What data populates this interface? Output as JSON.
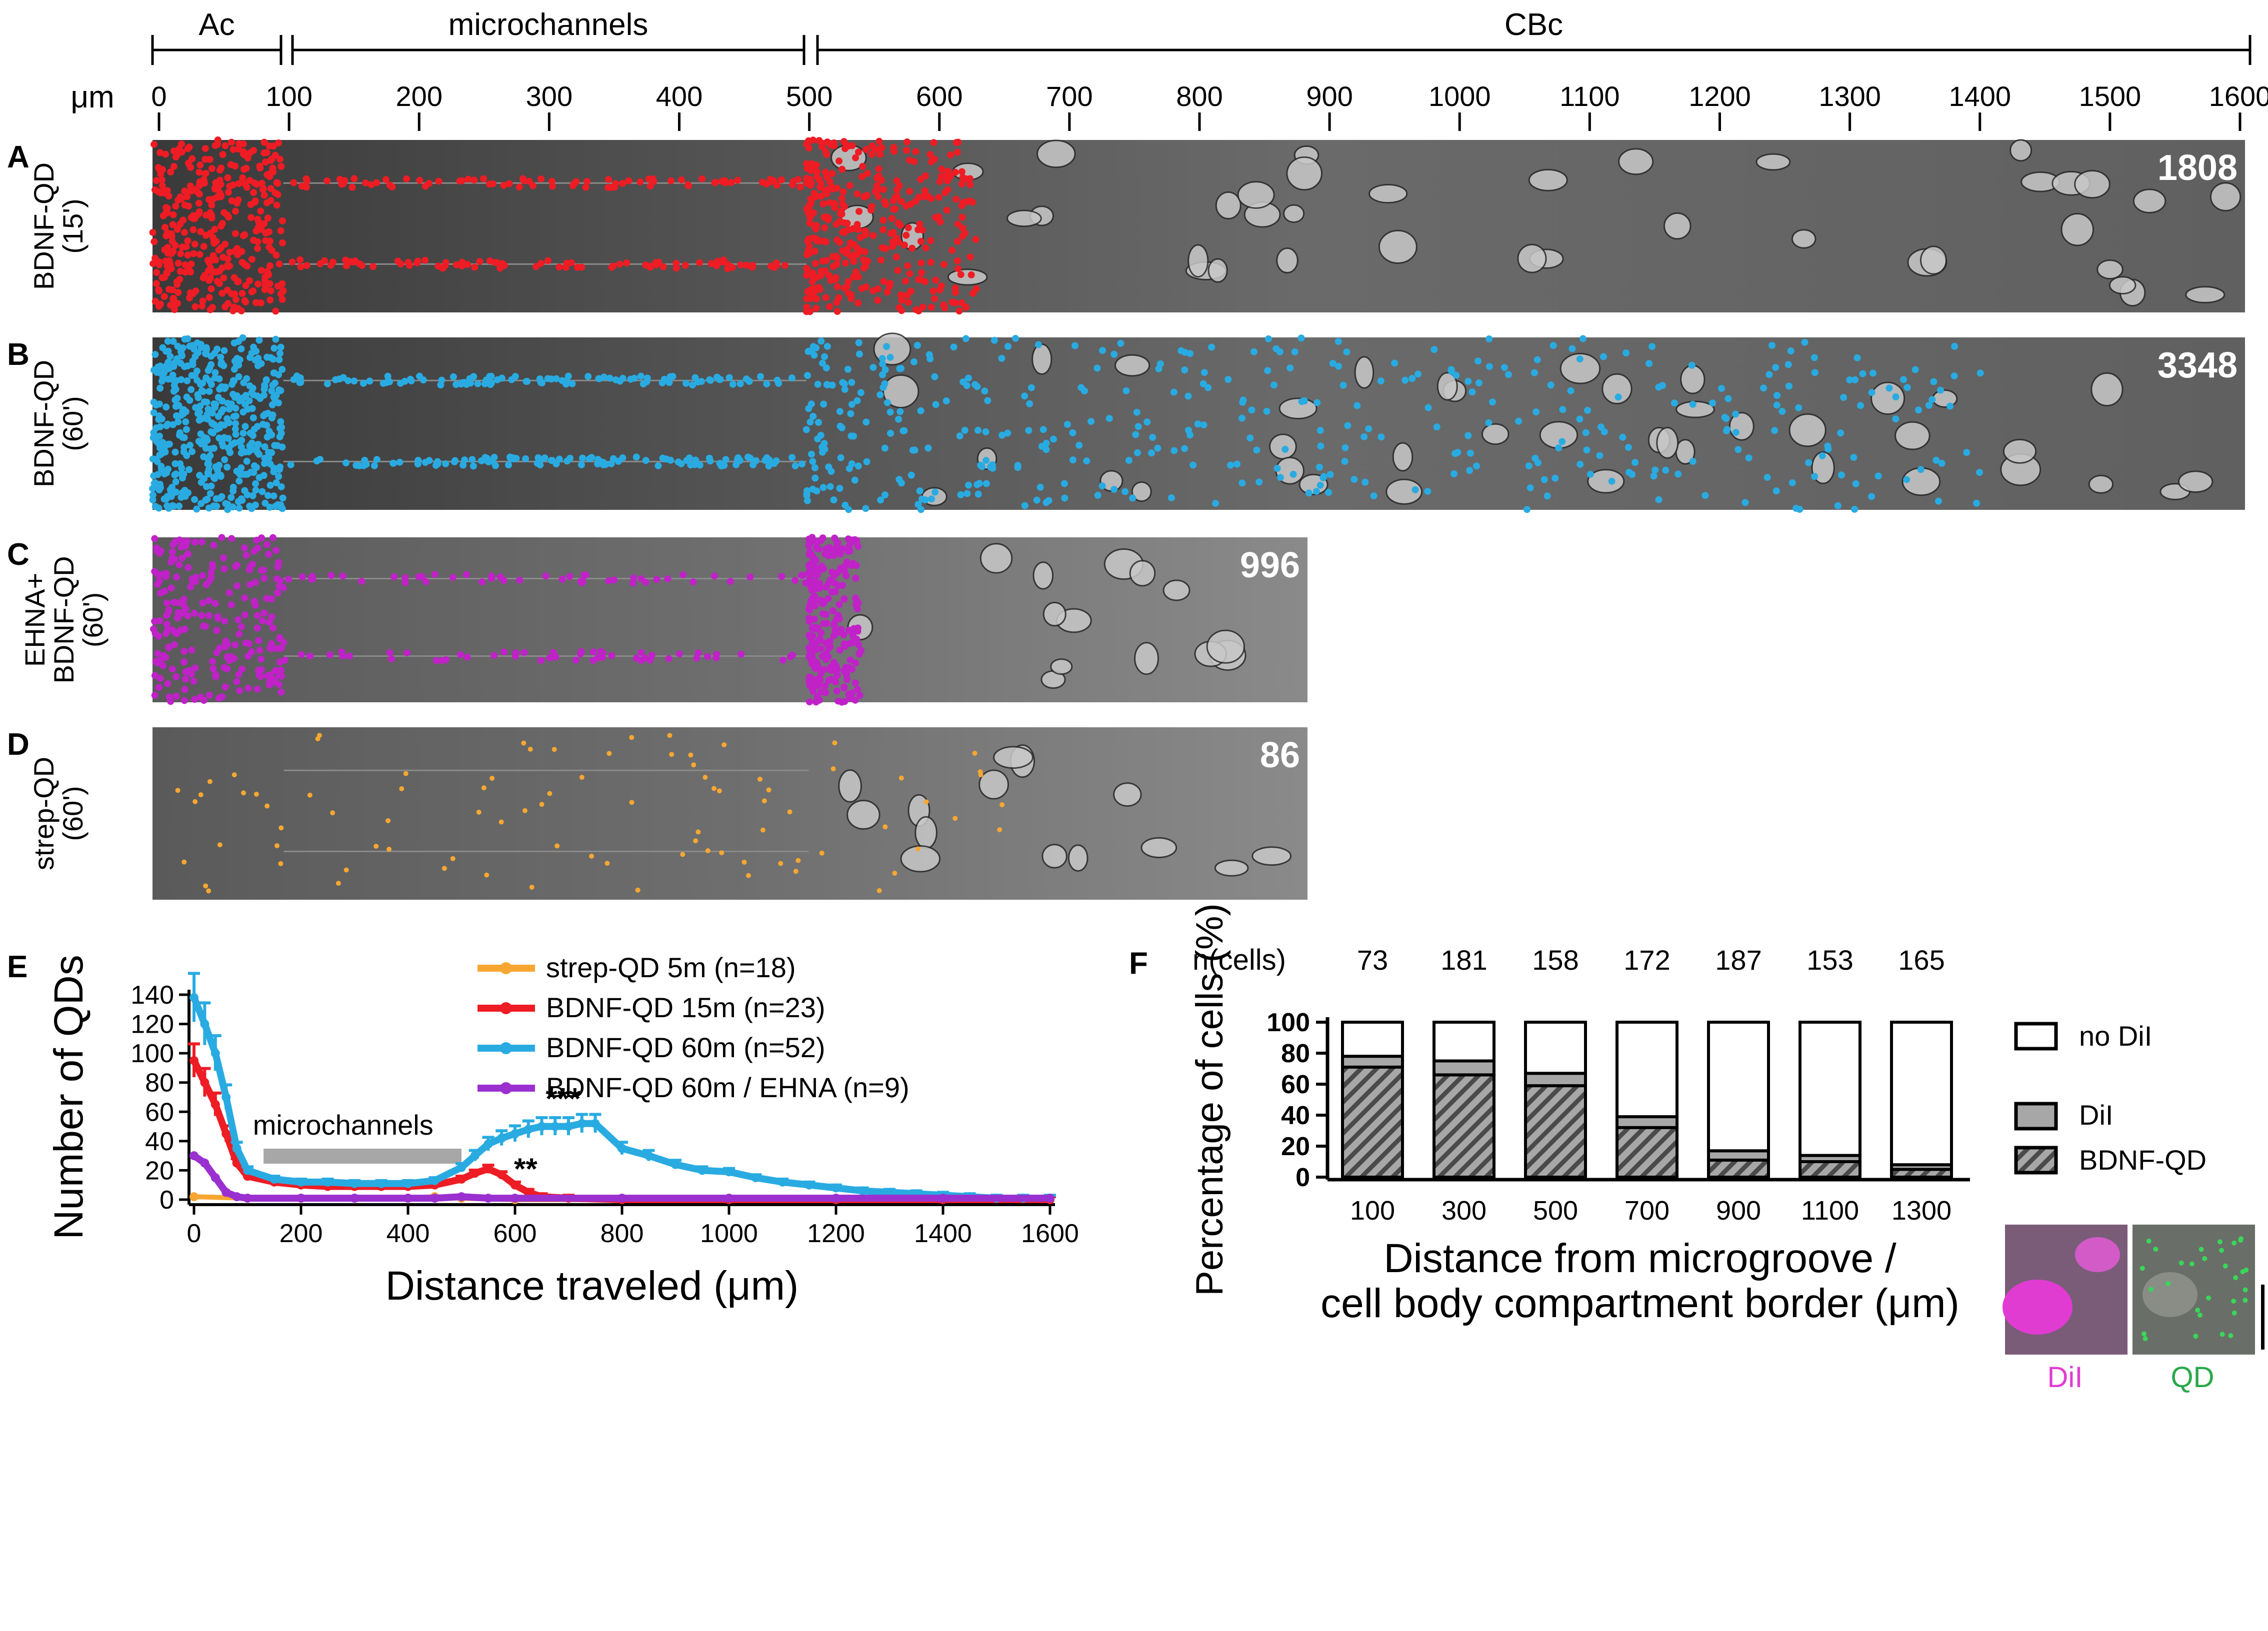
{
  "ruler": {
    "unit": "μm",
    "segments": [
      {
        "label": "Ac",
        "from": 0,
        "to": 100
      },
      {
        "label": "microchannels",
        "from": 100,
        "to": 500
      },
      {
        "label": "CBc",
        "from": 500,
        "to": 1600
      }
    ],
    "ticks": [
      "0",
      "100",
      "200",
      "300",
      "400",
      "500",
      "600",
      "700",
      "800",
      "900",
      "1000",
      "1100",
      "1200",
      "1300",
      "1400",
      "1500",
      "1600"
    ]
  },
  "panels": [
    {
      "letter": "A",
      "label_line1": "BDNF-QD",
      "label_line2": "(15')",
      "count": "1808",
      "dot_color": "#ee1c24"
    },
    {
      "letter": "B",
      "label_line1": "BDNF-QD",
      "label_line2": "(60')",
      "count": "3348",
      "dot_color": "#29abe2"
    },
    {
      "letter": "C",
      "label_line1": "EHNA+",
      "label_line2": "BDNF-QD",
      "label_line3": "(60')",
      "count": "996",
      "dot_color": "#c022c8"
    },
    {
      "letter": "D",
      "label_line1": "strep-QD",
      "label_line2": "(60')",
      "count": "86",
      "dot_color": "#f7a731"
    }
  ],
  "panel_e": {
    "letter": "E",
    "microchannels_label": "microchannels",
    "annotations": [
      "***",
      "**"
    ]
  },
  "panel_f": {
    "letter": "F",
    "ncells_label": "n(cells)",
    "ncells": [
      "73",
      "181",
      "158",
      "172",
      "187",
      "153",
      "165"
    ],
    "legend": [
      "no DiI",
      "DiI",
      "BDNF-QD"
    ],
    "inset_labels": [
      "DiI",
      "QD"
    ]
  },
  "chart_data": [
    {
      "type": "line",
      "title": "",
      "xlabel": "Distance traveled (μm)",
      "ylabel": "Number of QDs",
      "xlim": [
        0,
        1600
      ],
      "ylim": [
        0,
        140
      ],
      "xticks": [
        "0",
        "200",
        "400",
        "600",
        "800",
        "1000",
        "1200",
        "1400",
        "1600"
      ],
      "yticks": [
        "0",
        "20",
        "40",
        "60",
        "80",
        "100",
        "120",
        "140"
      ],
      "series": [
        {
          "name": "strep-QD 5m (n=18)",
          "color": "#f7a731",
          "x": [
            0,
            100,
            200,
            300,
            400,
            450,
            500,
            600,
            800,
            1000,
            1200,
            1400,
            1600
          ],
          "y": [
            2,
            1,
            1,
            1,
            1,
            2,
            1,
            0,
            0,
            0,
            0,
            0,
            0
          ]
        },
        {
          "name": "BDNF-QD 15m (n=23)",
          "color": "#ee1c24",
          "x": [
            0,
            20,
            40,
            60,
            80,
            100,
            150,
            200,
            250,
            300,
            350,
            400,
            450,
            500,
            525,
            550,
            575,
            600,
            625,
            650,
            700,
            800,
            1000,
            1200,
            1400,
            1600
          ],
          "y": [
            95,
            80,
            65,
            45,
            25,
            16,
            12,
            10,
            9,
            9,
            9,
            9,
            10,
            14,
            18,
            21,
            17,
            10,
            5,
            2,
            1,
            0,
            0,
            0,
            0,
            0
          ]
        },
        {
          "name": "BDNF-QD 60m (n=52)",
          "color": "#29abe2",
          "x": [
            0,
            20,
            40,
            60,
            80,
            100,
            150,
            200,
            250,
            300,
            350,
            400,
            450,
            500,
            525,
            550,
            575,
            600,
            625,
            650,
            675,
            700,
            725,
            750,
            800,
            850,
            900,
            950,
            1000,
            1050,
            1100,
            1150,
            1200,
            1250,
            1300,
            1350,
            1400,
            1450,
            1500,
            1550,
            1600
          ],
          "y": [
            138,
            120,
            100,
            70,
            35,
            20,
            14,
            12,
            12,
            11,
            11,
            11,
            13,
            22,
            30,
            38,
            42,
            45,
            48,
            50,
            50,
            50,
            52,
            52,
            35,
            30,
            24,
            20,
            19,
            15,
            12,
            10,
            8,
            6,
            5,
            4,
            3,
            2,
            1,
            1,
            1
          ]
        },
        {
          "name": "BDNF-QD 60m / EHNA (n=9)",
          "color": "#9b30d0",
          "x": [
            0,
            20,
            40,
            60,
            80,
            100,
            200,
            300,
            400,
            450,
            500,
            550,
            600,
            800,
            1000,
            1200,
            1400,
            1600
          ],
          "y": [
            30,
            25,
            15,
            5,
            2,
            1,
            1,
            1,
            1,
            1,
            2,
            1,
            1,
            1,
            1,
            1,
            1,
            1
          ]
        }
      ]
    },
    {
      "type": "bar",
      "stacked": true,
      "title": "",
      "xlabel": "Distance from microgroove / cell body compartment border (μm)",
      "ylabel": "Percentage of cells (%)",
      "ylim": [
        0,
        100
      ],
      "yticks": [
        "0",
        "20",
        "40",
        "60",
        "80",
        "100"
      ],
      "categories": [
        "100",
        "300",
        "500",
        "700",
        "900",
        "1100",
        "1300"
      ],
      "series": [
        {
          "name": "BDNF-QD",
          "values": [
            71,
            66,
            59,
            32,
            11,
            10,
            5
          ]
        },
        {
          "name": "DiI",
          "values": [
            7,
            9,
            8,
            7,
            6,
            4,
            3
          ]
        },
        {
          "name": "no DiI",
          "values": [
            22,
            25,
            33,
            61,
            83,
            86,
            92
          ]
        }
      ]
    }
  ]
}
